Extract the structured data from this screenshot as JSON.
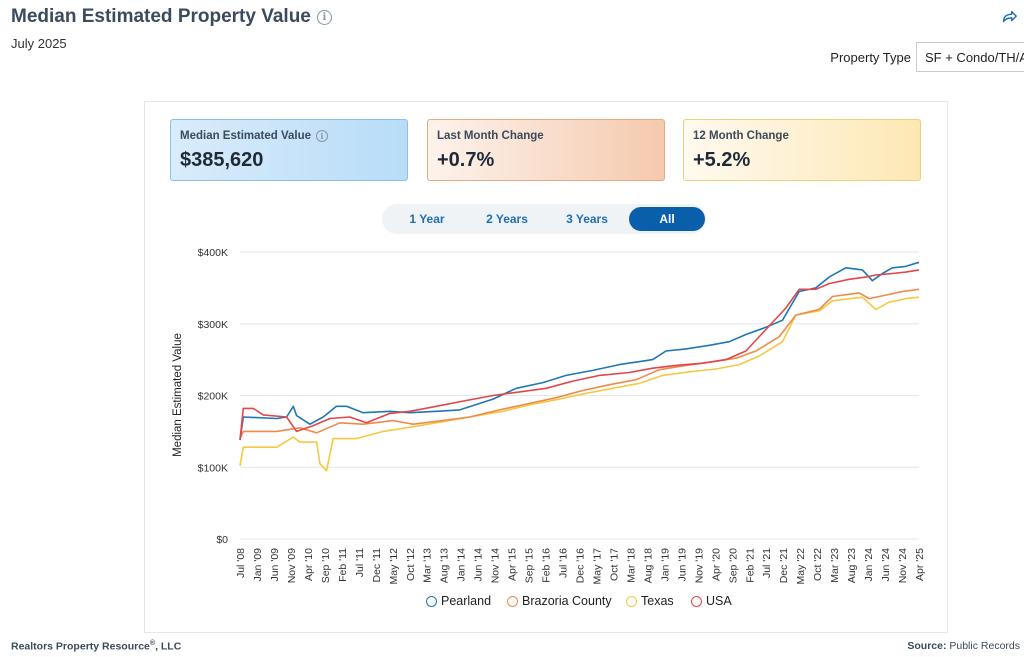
{
  "header": {
    "title": "Median Estimated Property Value",
    "subtitle": "July 2025",
    "property_type_label": "Property Type",
    "property_type_value": "SF + Condo/TH/Apt"
  },
  "cards": [
    {
      "label": "Median Estimated Value",
      "value": "$385,620",
      "has_info": true
    },
    {
      "label": "Last Month Change",
      "value": "+0.7%"
    },
    {
      "label": "12 Month Change",
      "value": "+5.2%"
    }
  ],
  "tabs": [
    "1 Year",
    "2 Years",
    "3 Years",
    "All"
  ],
  "active_tab": "All",
  "footer": {
    "left": "Realtors Property Resource",
    "left_mark": "®",
    "left_suffix": ", LLC",
    "right_label": "Source:",
    "right_value": "Public Records"
  },
  "colors": {
    "Pearland": "#1f77b4",
    "Brazoria County": "#f0894a",
    "Texas": "#f5c842",
    "USA": "#e0474c"
  },
  "chart_data": {
    "type": "line",
    "ylabel": "Median Estimated Value",
    "ylim": [
      0,
      400000
    ],
    "y_ticks": [
      {
        "value": 0,
        "label": "$0"
      },
      {
        "value": 100000,
        "label": "$100K"
      },
      {
        "value": 200000,
        "label": "$200K"
      },
      {
        "value": 300000,
        "label": "$300K"
      },
      {
        "value": 400000,
        "label": "$400K"
      }
    ],
    "x_range": [
      "2008-07",
      "2025-07"
    ],
    "x_ticks": [
      "Jul '08",
      "Jan '09",
      "Jun '09",
      "Nov '09",
      "Apr '10",
      "Sep '10",
      "Feb '11",
      "Jul '11",
      "Dec '11",
      "May '12",
      "Oct '12",
      "Mar '13",
      "Aug '13",
      "Jan '14",
      "Jun '14",
      "Nov '14",
      "Apr '15",
      "Sep '15",
      "Feb '16",
      "Jul '16",
      "Dec '16",
      "May '17",
      "Oct '17",
      "Mar '18",
      "Aug '18",
      "Jan '19",
      "Jun '19",
      "Nov '19",
      "Apr '20",
      "Sep '20",
      "Feb '21",
      "Jul '21",
      "Dec '21",
      "May '22",
      "Oct '22",
      "Mar '23",
      "Aug '23",
      "Jan '24",
      "Jun '24",
      "Nov '24",
      "Apr '25"
    ],
    "legend_position": "bottom",
    "series": [
      {
        "name": "Pearland",
        "points": [
          [
            "2008-07",
            138000
          ],
          [
            "2008-08",
            170000
          ],
          [
            "2009-06",
            168000
          ],
          [
            "2009-09",
            170000
          ],
          [
            "2009-11",
            185000
          ],
          [
            "2009-12",
            172000
          ],
          [
            "2010-04",
            160000
          ],
          [
            "2010-08",
            170000
          ],
          [
            "2010-12",
            185000
          ],
          [
            "2011-03",
            185000
          ],
          [
            "2011-08",
            176000
          ],
          [
            "2012-04",
            178000
          ],
          [
            "2012-10",
            176000
          ],
          [
            "2013-06",
            178000
          ],
          [
            "2014-01",
            180000
          ],
          [
            "2014-11",
            195000
          ],
          [
            "2015-06",
            210000
          ],
          [
            "2016-02",
            218000
          ],
          [
            "2016-09",
            228000
          ],
          [
            "2017-05",
            235000
          ],
          [
            "2018-01",
            243000
          ],
          [
            "2018-11",
            250000
          ],
          [
            "2019-03",
            262000
          ],
          [
            "2019-09",
            265000
          ],
          [
            "2020-04",
            270000
          ],
          [
            "2020-10",
            275000
          ],
          [
            "2021-03",
            285000
          ],
          [
            "2021-09",
            295000
          ],
          [
            "2022-02",
            305000
          ],
          [
            "2022-07",
            345000
          ],
          [
            "2022-12",
            350000
          ],
          [
            "2023-04",
            365000
          ],
          [
            "2023-09",
            378000
          ],
          [
            "2024-02",
            375000
          ],
          [
            "2024-05",
            360000
          ],
          [
            "2024-08",
            370000
          ],
          [
            "2024-11",
            378000
          ],
          [
            "2025-03",
            380000
          ],
          [
            "2025-07",
            385620
          ]
        ]
      },
      {
        "name": "Brazoria County",
        "points": [
          [
            "2008-07",
            140000
          ],
          [
            "2008-08",
            150000
          ],
          [
            "2009-06",
            150000
          ],
          [
            "2010-01",
            155000
          ],
          [
            "2010-06",
            148000
          ],
          [
            "2011-01",
            162000
          ],
          [
            "2011-08",
            160000
          ],
          [
            "2012-05",
            165000
          ],
          [
            "2012-11",
            160000
          ],
          [
            "2013-08",
            165000
          ],
          [
            "2014-04",
            170000
          ],
          [
            "2015-01",
            180000
          ],
          [
            "2015-09",
            188000
          ],
          [
            "2016-06",
            197000
          ],
          [
            "2017-02",
            207000
          ],
          [
            "2017-10",
            215000
          ],
          [
            "2018-06",
            222000
          ],
          [
            "2019-01",
            236000
          ],
          [
            "2019-09",
            242000
          ],
          [
            "2020-05",
            247000
          ],
          [
            "2020-12",
            252000
          ],
          [
            "2021-06",
            262000
          ],
          [
            "2022-01",
            282000
          ],
          [
            "2022-06",
            312000
          ],
          [
            "2023-01",
            320000
          ],
          [
            "2023-05",
            338000
          ],
          [
            "2024-01",
            343000
          ],
          [
            "2024-04",
            335000
          ],
          [
            "2024-09",
            340000
          ],
          [
            "2025-02",
            345000
          ],
          [
            "2025-07",
            348000
          ]
        ]
      },
      {
        "name": "Texas",
        "points": [
          [
            "2008-07",
            102000
          ],
          [
            "2008-08",
            128000
          ],
          [
            "2009-06",
            128000
          ],
          [
            "2009-11",
            142000
          ],
          [
            "2010-01",
            135000
          ],
          [
            "2010-06",
            135000
          ],
          [
            "2010-07",
            105000
          ],
          [
            "2010-09",
            95000
          ],
          [
            "2010-11",
            140000
          ],
          [
            "2011-06",
            140000
          ],
          [
            "2012-02",
            150000
          ],
          [
            "2012-09",
            155000
          ],
          [
            "2013-06",
            162000
          ],
          [
            "2014-04",
            170000
          ],
          [
            "2015-02",
            178000
          ],
          [
            "2015-10",
            187000
          ],
          [
            "2016-07",
            195000
          ],
          [
            "2017-03",
            203000
          ],
          [
            "2017-11",
            210000
          ],
          [
            "2018-07",
            217000
          ],
          [
            "2019-02",
            228000
          ],
          [
            "2019-10",
            233000
          ],
          [
            "2020-06",
            237000
          ],
          [
            "2021-01",
            243000
          ],
          [
            "2021-07",
            255000
          ],
          [
            "2022-02",
            275000
          ],
          [
            "2022-06",
            312000
          ],
          [
            "2023-01",
            318000
          ],
          [
            "2023-05",
            332000
          ],
          [
            "2024-02",
            337000
          ],
          [
            "2024-06",
            320000
          ],
          [
            "2024-10",
            330000
          ],
          [
            "2025-03",
            335000
          ],
          [
            "2025-07",
            337000
          ]
        ]
      },
      {
        "name": "USA",
        "points": [
          [
            "2008-07",
            138000
          ],
          [
            "2008-08",
            182000
          ],
          [
            "2008-11",
            182000
          ],
          [
            "2009-02",
            173000
          ],
          [
            "2009-09",
            170000
          ],
          [
            "2009-12",
            150000
          ],
          [
            "2010-05",
            158000
          ],
          [
            "2010-10",
            168000
          ],
          [
            "2011-04",
            170000
          ],
          [
            "2011-09",
            162000
          ],
          [
            "2012-04",
            175000
          ],
          [
            "2012-10",
            178000
          ],
          [
            "2013-06",
            185000
          ],
          [
            "2014-03",
            193000
          ],
          [
            "2014-11",
            200000
          ],
          [
            "2015-07",
            205000
          ],
          [
            "2016-03",
            210000
          ],
          [
            "2016-11",
            220000
          ],
          [
            "2017-07",
            228000
          ],
          [
            "2018-04",
            232000
          ],
          [
            "2018-11",
            238000
          ],
          [
            "2019-06",
            242000
          ],
          [
            "2020-02",
            245000
          ],
          [
            "2020-09",
            250000
          ],
          [
            "2021-03",
            262000
          ],
          [
            "2021-09",
            292000
          ],
          [
            "2022-03",
            322000
          ],
          [
            "2022-07",
            348000
          ],
          [
            "2022-12",
            348000
          ],
          [
            "2023-04",
            356000
          ],
          [
            "2023-10",
            362000
          ],
          [
            "2024-03",
            365000
          ],
          [
            "2024-06",
            368000
          ],
          [
            "2024-11",
            370000
          ],
          [
            "2025-03",
            372000
          ],
          [
            "2025-07",
            375000
          ]
        ]
      }
    ]
  }
}
